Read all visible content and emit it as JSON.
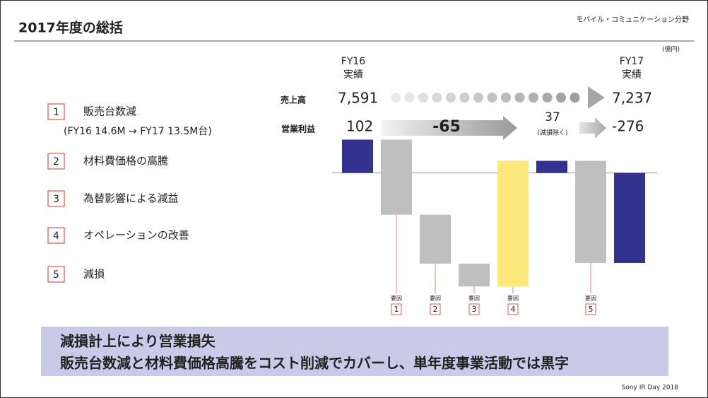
{
  "header": {
    "title": "2017年度の総括",
    "segment": "モバイル・コミュニケーション分野"
  },
  "list": [
    {
      "number": "1",
      "text": "販売台数減",
      "note": "(FY16 14.6M → FY17 13.5M台)"
    },
    {
      "number": "2",
      "text": "材料費価格の高騰"
    },
    {
      "number": "3",
      "text": "為替影響による減益"
    },
    {
      "number": "4",
      "text": "オペレーションの改善"
    },
    {
      "number": "5",
      "text": "減損"
    }
  ],
  "chart_data": {
    "type": "waterfall",
    "unit": "(億円)",
    "start_label": "FY16",
    "start_sublabel": "実績",
    "end_label": "FY17",
    "end_sublabel": "実績",
    "sales_label": "売上高",
    "sales_start": "7,591",
    "sales_end": "7,237",
    "profit_label": "営業利益",
    "start": 102,
    "steps": [
      -230,
      -150,
      -70,
      385
    ],
    "steps_sum": -65,
    "subtotal": 37,
    "subtotal_note": "(減損除く)",
    "impairment": -313,
    "end": -276,
    "factor_label": "要因",
    "colors": {
      "total": "#33338f",
      "decrease": "#bfbfbf",
      "increase": "#fbe77a"
    },
    "ylim": [
      -380,
      140
    ]
  },
  "banner": [
    "減損計上により営業損失",
    "販売台数減と材料費価格高騰をコスト削減でカバーし、単年度事業活動では黒字"
  ],
  "footer": "Sony IR Day 2018"
}
